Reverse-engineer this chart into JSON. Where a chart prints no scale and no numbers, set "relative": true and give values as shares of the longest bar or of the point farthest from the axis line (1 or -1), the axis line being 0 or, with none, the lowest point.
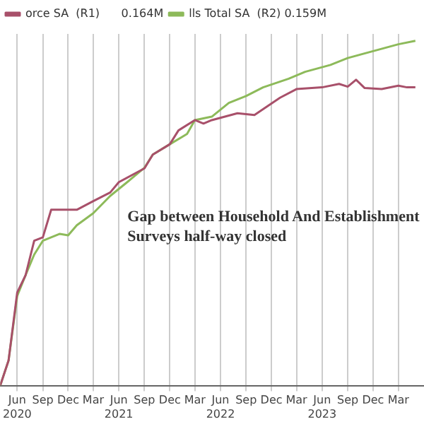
{
  "chart_data": {
    "type": "line",
    "relative": true,
    "legend": "top left",
    "grid": "x",
    "marker": "none",
    "line_style": "solid",
    "annotations": [
      "Gap between Household And Establishment Surveys half-way closed"
    ],
    "xlim": [
      "2020-04",
      "2024-06"
    ],
    "xticks": [
      {
        "value": "2020-06",
        "label": "Jun\n2020"
      },
      {
        "value": "2020-09",
        "label": "Sep"
      },
      {
        "value": "2020-12",
        "label": "Dec"
      },
      {
        "value": "2021-03",
        "label": "Mar"
      },
      {
        "value": "2021-06",
        "label": "Jun\n2021"
      },
      {
        "value": "2021-09",
        "label": "Sep"
      },
      {
        "value": "2021-12",
        "label": "Dec"
      },
      {
        "value": "2022-03",
        "label": "Mar"
      },
      {
        "value": "2022-06",
        "label": "Jun\n2022"
      },
      {
        "value": "2022-09",
        "label": "Sep"
      },
      {
        "value": "2022-12",
        "label": "Dec"
      },
      {
        "value": "2023-03",
        "label": "Mar"
      },
      {
        "value": "2023-06",
        "label": "Jun\n2023"
      },
      {
        "value": "2023-09",
        "label": "Sep"
      },
      {
        "value": "2023-12",
        "label": "Dec"
      },
      {
        "value": "2024-03",
        "label": "Mar"
      }
    ],
    "series": [
      {
        "name": "orce SA  (R1)      0.164M",
        "color": "#a8506a",
        "x": [
          "2020-04",
          "2020-05",
          "2020-06",
          "2020-07",
          "2020-08",
          "2020-09",
          "2020-10",
          "2020-11",
          "2021-01",
          "2021-03",
          "2021-05",
          "2021-06",
          "2021-09",
          "2021-10",
          "2021-12",
          "2022-01",
          "2022-03",
          "2022-04",
          "2022-05",
          "2022-08",
          "2022-10",
          "2023-01",
          "2023-03",
          "2023-06",
          "2023-08",
          "2023-09",
          "2023-10",
          "2023-11",
          "2024-01",
          "2024-03",
          "2024-04",
          "2024-05"
        ],
        "values": [
          0,
          0.073,
          0.27,
          0.32,
          0.42,
          0.43,
          0.51,
          0.51,
          0.51,
          0.535,
          0.56,
          0.59,
          0.63,
          0.67,
          0.7,
          0.74,
          0.77,
          0.76,
          0.77,
          0.79,
          0.785,
          0.835,
          0.86,
          0.865,
          0.875,
          0.867,
          0.887,
          0.863,
          0.86,
          0.87,
          0.865,
          0.865
        ]
      },
      {
        "name": "lls Total SA  (R2) 0.159M",
        "color": "#8dba5a",
        "x": [
          "2020-04",
          "2020-05",
          "2020-06",
          "2020-07",
          "2020-08",
          "2020-09",
          "2020-11",
          "2020-12",
          "2021-01",
          "2021-03",
          "2021-05",
          "2021-07",
          "2021-09",
          "2021-10",
          "2021-12",
          "2022-02",
          "2022-03",
          "2022-05",
          "2022-07",
          "2022-09",
          "2022-11",
          "2023-02",
          "2023-04",
          "2023-07",
          "2023-09",
          "2023-12",
          "2024-03",
          "2024-05"
        ],
        "values": [
          0,
          0.073,
          0.26,
          0.32,
          0.38,
          0.42,
          0.44,
          0.436,
          0.465,
          0.5,
          0.55,
          0.59,
          0.632,
          0.67,
          0.7,
          0.73,
          0.77,
          0.78,
          0.82,
          0.84,
          0.865,
          0.89,
          0.91,
          0.93,
          0.95,
          0.97,
          0.99,
          1
        ]
      }
    ]
  }
}
